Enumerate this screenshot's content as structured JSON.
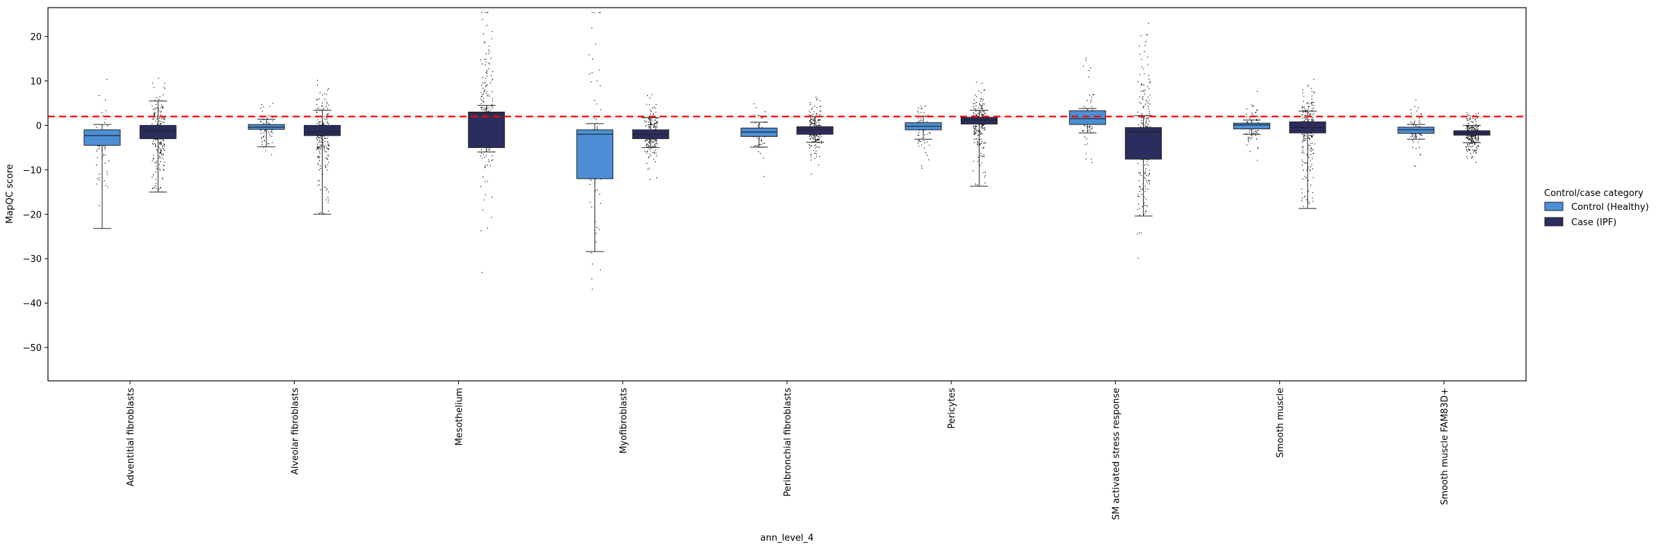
{
  "chart_data": {
    "type": "box",
    "xlabel": "ann_level_4",
    "ylabel": "MapQC score",
    "ylim": [
      -57.5,
      26.5
    ],
    "yticks": [
      20,
      10,
      0,
      -10,
      -20,
      -30,
      -40,
      -50
    ],
    "ytick_labels": [
      "20",
      "10",
      "0",
      "−10",
      "−20",
      "−30",
      "−40",
      "−50"
    ],
    "reference_line": {
      "y": 2,
      "color": "#ff0000",
      "style": "dashed"
    },
    "categories": [
      "Adventitial fibroblasts",
      "Alveolar fibroblasts",
      "Mesothelium",
      "Myofibroblasts",
      "Peribronchial fibroblasts",
      "Pericytes",
      "SM activated stress response",
      "Smooth muscle",
      "Smooth muscle FAM83D+"
    ],
    "legend": {
      "title": "Control/case category",
      "placement": "right",
      "entries": [
        "Control (Healthy)",
        "Case (IPF)"
      ]
    },
    "series": [
      {
        "name": "Control (Healthy)",
        "color": "#4c8fd6",
        "boxes": [
          {
            "q1": -4.5,
            "median": -2.3,
            "q3": -1.0,
            "wlo": -23.2,
            "whi": 0.2
          },
          {
            "q1": -0.9,
            "median": -0.4,
            "q3": 0.2,
            "wlo": -4.8,
            "whi": 1.4
          },
          null,
          {
            "q1": -12.0,
            "median": -2.0,
            "q3": -1.0,
            "wlo": -28.4,
            "whi": 0.4
          },
          {
            "q1": -2.5,
            "median": -1.5,
            "q3": -0.6,
            "wlo": -4.9,
            "whi": 0.7
          },
          {
            "q1": -1.0,
            "median": -0.2,
            "q3": 0.6,
            "wlo": -3.1,
            "whi": 2.1
          },
          {
            "q1": 0.2,
            "median": 1.5,
            "q3": 3.3,
            "wlo": -1.7,
            "whi": 3.8
          },
          {
            "q1": -0.8,
            "median": 0.1,
            "q3": 0.5,
            "wlo": -2.0,
            "whi": 1.2
          },
          {
            "q1": -1.8,
            "median": -1.0,
            "q3": -0.4,
            "wlo": -3.1,
            "whi": 0.2
          }
        ]
      },
      {
        "name": "Case (IPF)",
        "color": "#2b2d5e",
        "boxes": [
          {
            "q1": -3.0,
            "median": -1.3,
            "q3": 0.0,
            "wlo": -15.0,
            "whi": 5.5
          },
          {
            "q1": -2.3,
            "median": -1.5,
            "q3": 0.0,
            "wlo": -20.0,
            "whi": 3.4
          },
          {
            "q1": -5.0,
            "median": 2.8,
            "q3": 3.0,
            "wlo": -6.0,
            "whi": 4.5
          },
          {
            "q1": -3.0,
            "median": -2.0,
            "q3": -1.0,
            "wlo": -5.0,
            "whi": 1.7
          },
          {
            "q1": -2.0,
            "median": -1.0,
            "q3": -0.3,
            "wlo": -3.8,
            "whi": 2.0
          },
          {
            "q1": 0.3,
            "median": 1.2,
            "q3": 1.8,
            "wlo": -13.7,
            "whi": 3.4
          },
          {
            "q1": -7.6,
            "median": -1.5,
            "q3": -0.5,
            "wlo": -20.4,
            "whi": 2.2
          },
          {
            "q1": -1.7,
            "median": -0.5,
            "q3": 0.8,
            "wlo": -18.7,
            "whi": 3.2
          },
          {
            "q1": -2.2,
            "median": -1.7,
            "q3": -1.2,
            "wlo": -3.9,
            "whi": 0.0
          }
        ]
      }
    ],
    "scatter_point_color": "#000000"
  }
}
